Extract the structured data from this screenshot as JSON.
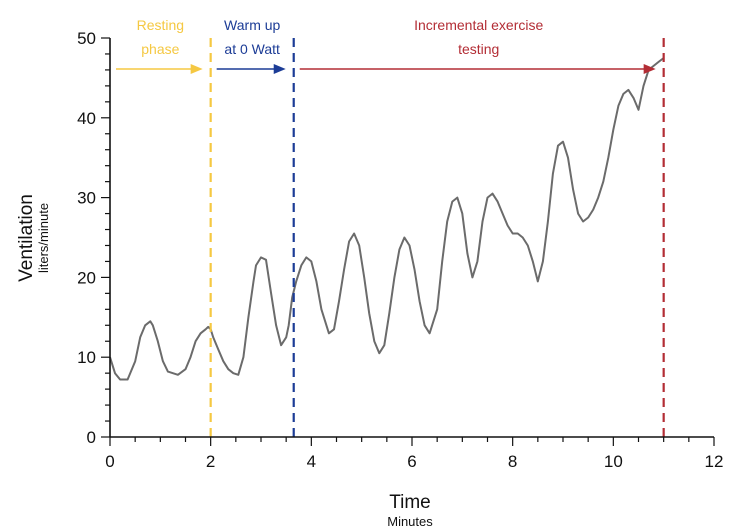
{
  "chart_data": {
    "type": "line",
    "xlabel": "Time",
    "xlabel_sub": "Minutes",
    "ylabel": "Ventilation",
    "ylabel_sub": "liters/minute",
    "xlim": [
      0,
      12
    ],
    "ylim": [
      0,
      50
    ],
    "xticks": [
      0,
      2,
      4,
      6,
      8,
      10,
      12
    ],
    "yticks": [
      0,
      10,
      20,
      30,
      40,
      50
    ],
    "grid": false,
    "series": [
      {
        "color": "#6b6b6b",
        "x": [
          0,
          0.1,
          0.2,
          0.35,
          0.5,
          0.6,
          0.7,
          0.8,
          0.85,
          0.95,
          1.05,
          1.15,
          1.25,
          1.35,
          1.5,
          1.6,
          1.7,
          1.8,
          1.9,
          1.95,
          2.0,
          2.05,
          2.15,
          2.25,
          2.35,
          2.45,
          2.55,
          2.65,
          2.75,
          2.85,
          2.9,
          3.0,
          3.1,
          3.2,
          3.3,
          3.4,
          3.5,
          3.55,
          3.62,
          3.7,
          3.8,
          3.9,
          4.0,
          4.1,
          4.2,
          4.35,
          4.45,
          4.55,
          4.65,
          4.75,
          4.85,
          4.95,
          5.05,
          5.15,
          5.25,
          5.35,
          5.45,
          5.55,
          5.65,
          5.75,
          5.85,
          5.95,
          6.05,
          6.15,
          6.25,
          6.35,
          6.5,
          6.6,
          6.7,
          6.8,
          6.9,
          7.0,
          7.1,
          7.2,
          7.3,
          7.4,
          7.5,
          7.6,
          7.7,
          7.8,
          7.9,
          8.0,
          8.1,
          8.2,
          8.3,
          8.4,
          8.5,
          8.6,
          8.7,
          8.8,
          8.9,
          9.0,
          9.1,
          9.2,
          9.3,
          9.4,
          9.5,
          9.6,
          9.7,
          9.8,
          9.9,
          10.0,
          10.1,
          10.2,
          10.3,
          10.4,
          10.5,
          10.6,
          10.7,
          10.8,
          10.9,
          11.0
        ],
        "y": [
          10,
          8,
          7.2,
          7.2,
          9.5,
          12.5,
          14,
          14.5,
          14,
          12,
          9.5,
          8.2,
          8,
          7.8,
          8.5,
          10,
          12,
          13,
          13.5,
          13.8,
          13.5,
          12.5,
          11,
          9.5,
          8.5,
          8,
          7.8,
          10,
          15,
          19.5,
          21.5,
          22.5,
          22.2,
          18,
          14,
          11.5,
          12.5,
          14,
          17.5,
          19.5,
          21.5,
          22.5,
          22,
          19.5,
          16,
          13,
          13.5,
          17,
          21,
          24.5,
          25.5,
          24,
          20,
          15.5,
          12,
          10.5,
          11.5,
          15.5,
          20,
          23.5,
          25,
          24,
          21,
          17,
          14,
          13,
          16,
          22,
          27,
          29.5,
          30,
          28,
          23,
          20,
          22,
          27,
          30,
          30.5,
          29.5,
          28,
          26.5,
          25.5,
          25.5,
          25,
          24,
          22,
          19.5,
          22,
          27,
          33,
          36.5,
          37,
          35,
          31,
          28,
          27,
          27.5,
          28.5,
          30,
          32,
          35,
          38.5,
          41.5,
          43,
          43.5,
          42.5,
          41,
          44,
          46,
          46.5,
          47,
          47.5
        ]
      }
    ],
    "phase_lines": [
      {
        "x": 2.0,
        "color": "#f5c842",
        "label_lines": [
          "Resting",
          "phase"
        ]
      },
      {
        "x": 3.65,
        "color": "#1c3c96",
        "label_lines": [
          "Warm up",
          "at 0 Watt"
        ]
      },
      {
        "x": 11.0,
        "color": "#b32d35",
        "label_lines": [
          "Incremental exercise",
          "testing"
        ]
      }
    ]
  }
}
